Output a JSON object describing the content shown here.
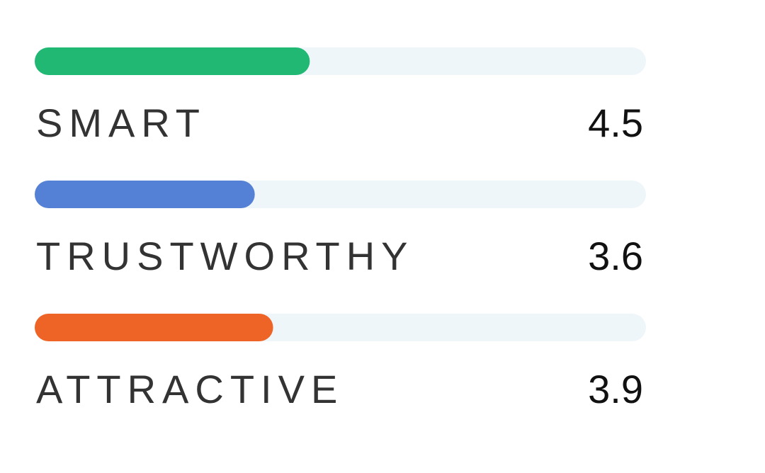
{
  "chart_data": {
    "type": "bar",
    "orientation": "horizontal",
    "categories": [
      "SMART",
      "TRUSTWORTHY",
      "ATTRACTIVE"
    ],
    "values": [
      4.5,
      3.6,
      3.9
    ],
    "colors": [
      "#21b874",
      "#5480d6",
      "#ee6427"
    ],
    "track_color": "#eff6f9",
    "xlim": [
      0,
      10
    ]
  }
}
